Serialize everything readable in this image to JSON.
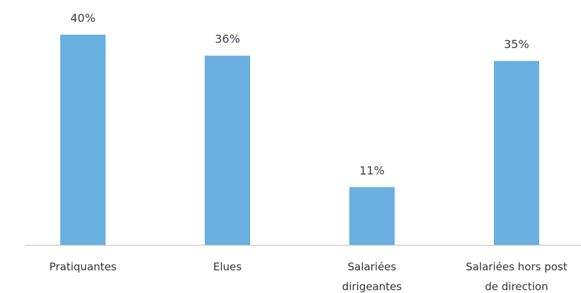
{
  "chart_data": {
    "type": "bar",
    "categories": [
      [
        "Pratiquantes"
      ],
      [
        "Elues"
      ],
      [
        "Salariées",
        "dirigeantes"
      ],
      [
        "Salariées hors post",
        "de direction"
      ]
    ],
    "values": [
      40,
      36,
      11,
      35
    ],
    "value_labels": [
      "40%",
      "36%",
      "11%",
      "35%"
    ],
    "ylim": [
      0,
      40
    ],
    "title": "",
    "xlabel": "",
    "ylabel": "",
    "grid": false,
    "legend": "none",
    "colors": {
      "bar": "#6AB0E0",
      "axis": "#BFBFBF",
      "value_text": "#3A3A4A",
      "category_text": "#333333"
    }
  }
}
